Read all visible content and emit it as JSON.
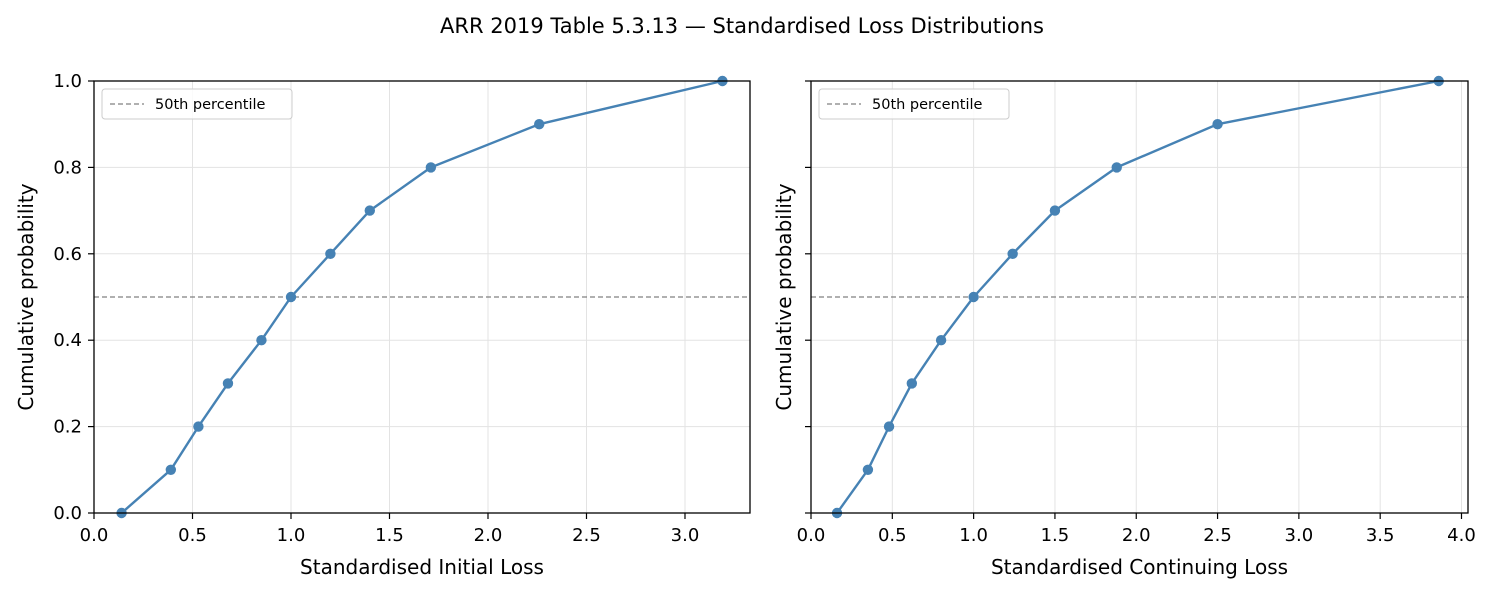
{
  "figure": {
    "title": "ARR 2019 Table 5.3.13 — Standardised Loss Distributions"
  },
  "chart_data": [
    {
      "type": "line",
      "xlabel": "Standardised Initial Loss",
      "ylabel": "Cumulative probability",
      "xlim": [
        0.0,
        3.33
      ],
      "ylim": [
        0.0,
        1.0
      ],
      "xticks": [
        "0.0",
        "0.5",
        "1.0",
        "1.5",
        "2.0",
        "2.5",
        "3.0"
      ],
      "yticks": [
        "0.0",
        "0.2",
        "0.4",
        "0.6",
        "0.8",
        "1.0"
      ],
      "grid": true,
      "series": [
        {
          "color": "#4682b4",
          "marker": "circle",
          "x": [
            0.14,
            0.39,
            0.53,
            0.68,
            0.85,
            1.0,
            1.2,
            1.4,
            1.71,
            2.26,
            3.19
          ],
          "y": [
            0.0,
            0.1,
            0.2,
            0.3,
            0.4,
            0.5,
            0.6,
            0.7,
            0.8,
            0.9,
            1.0
          ]
        }
      ],
      "reference_line": {
        "y": 0.5,
        "label": "50th percentile",
        "color": "#808080",
        "style": "dashed"
      },
      "legend": {
        "position": "upper-left",
        "entries": [
          "50th percentile"
        ]
      }
    },
    {
      "type": "line",
      "xlabel": "Standardised Continuing Loss",
      "ylabel": "Cumulative probability",
      "xlim": [
        0.0,
        4.04
      ],
      "ylim": [
        0.0,
        1.0
      ],
      "xticks": [
        "0.0",
        "0.5",
        "1.0",
        "1.5",
        "2.0",
        "2.5",
        "3.0",
        "3.5",
        "4.0"
      ],
      "yticks": [],
      "grid": true,
      "series": [
        {
          "color": "#4682b4",
          "marker": "circle",
          "x": [
            0.16,
            0.35,
            0.48,
            0.62,
            0.8,
            1.0,
            1.24,
            1.5,
            1.88,
            2.5,
            3.86
          ],
          "y": [
            0.0,
            0.1,
            0.2,
            0.3,
            0.4,
            0.5,
            0.6,
            0.7,
            0.8,
            0.9,
            1.0
          ]
        }
      ],
      "reference_line": {
        "y": 0.5,
        "label": "50th percentile",
        "color": "#808080",
        "style": "dashed"
      },
      "legend": {
        "position": "upper-left",
        "entries": [
          "50th percentile"
        ]
      }
    }
  ]
}
